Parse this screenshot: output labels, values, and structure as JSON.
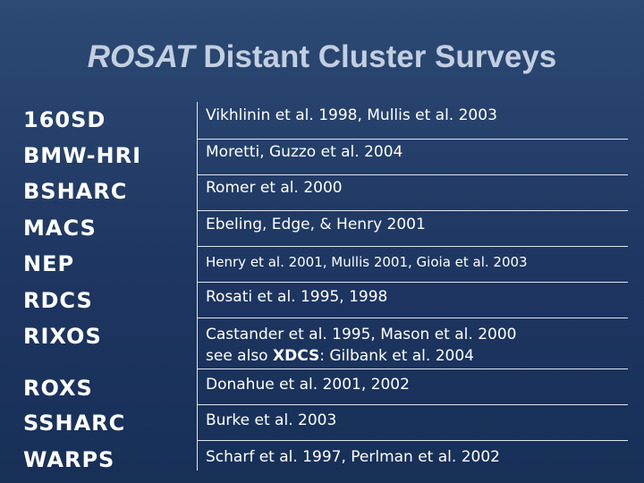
{
  "header": {
    "title_italic": "ROSAT",
    "title_rest": " Distant Cluster Surveys"
  },
  "table": {
    "rows": [
      {
        "name": "160SD",
        "lines": [
          [
            {
              "text": "Vikhlinin et al. 1998, Mullis et al. 2003"
            }
          ]
        ]
      },
      {
        "name": "BMW-HRI",
        "lines": [
          [
            {
              "text": "Moretti, Guzzo et al. 2004"
            }
          ]
        ]
      },
      {
        "name": "BSHARC",
        "lines": [
          [
            {
              "text": "Romer et al. 2000"
            }
          ]
        ]
      },
      {
        "name": "MACS",
        "lines": [
          [
            {
              "text": "Ebeling, Edge, & Henry 2001"
            }
          ]
        ]
      },
      {
        "name": "NEP",
        "small": true,
        "lines": [
          [
            {
              "text": "Henry et al. 2001, Mullis 2001, Gioia et al. 2003"
            }
          ]
        ]
      },
      {
        "name": "RDCS",
        "lines": [
          [
            {
              "text": "Rosati et al. 1995, 1998"
            }
          ]
        ]
      },
      {
        "name": "RIXOS",
        "lines": [
          [
            {
              "text": "Castander et al. 1995, Mason et al. 2000"
            }
          ],
          [
            {
              "text": "see also "
            },
            {
              "text": "XDCS",
              "bold": true
            },
            {
              "text": ": Gilbank et al. 2004"
            }
          ]
        ]
      },
      {
        "name": "ROXS",
        "lines": [
          [
            {
              "text": "Donahue et al. 2001, 2002"
            }
          ]
        ]
      },
      {
        "name": "SSHARC",
        "lines": [
          [
            {
              "text": "Burke et al. 2003"
            }
          ]
        ]
      },
      {
        "name": "WARPS",
        "lines": [
          [
            {
              "text": "Scharf et al. 1997, Perlman et al. 2002"
            }
          ]
        ]
      }
    ]
  }
}
